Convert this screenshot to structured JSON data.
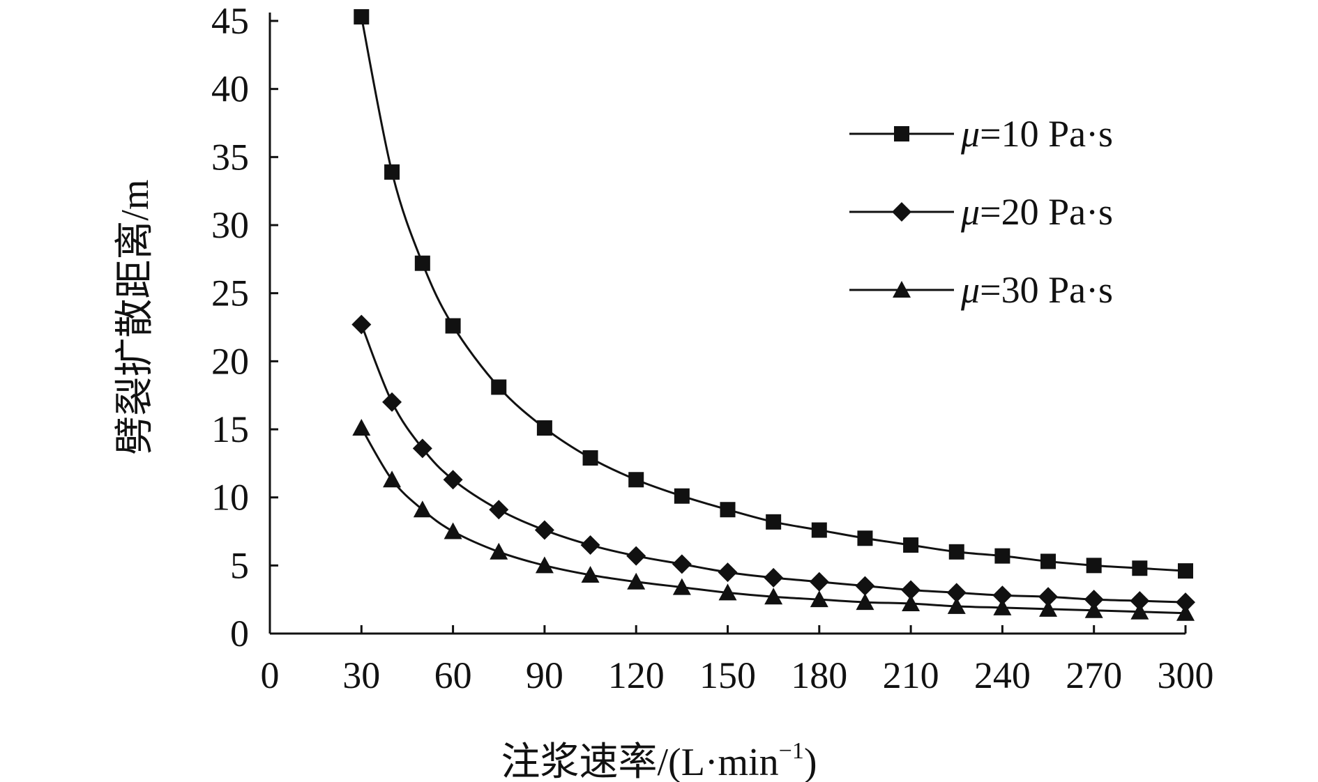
{
  "chart_data": {
    "type": "line",
    "title": "",
    "xlabel": "注浆速率/(L·min",
    "xlabel_sup": "−1",
    "xlabel_end": ")",
    "ylabel": "劈裂扩散距离/m",
    "xlim": [
      0,
      300
    ],
    "ylim": [
      0,
      45
    ],
    "x_ticks": [
      0,
      30,
      60,
      90,
      120,
      150,
      180,
      210,
      240,
      270,
      300
    ],
    "y_ticks": [
      0,
      5,
      10,
      15,
      20,
      25,
      30,
      35,
      40,
      45
    ],
    "grid": false,
    "legend_position": "top-right",
    "x": [
      30,
      40,
      50,
      60,
      75,
      90,
      105,
      120,
      135,
      150,
      165,
      180,
      195,
      210,
      225,
      240,
      255,
      270,
      285,
      300
    ],
    "series": [
      {
        "name_prefix": "μ",
        "name_suffix": "=10 Pa·s",
        "marker": "square",
        "values": [
          45.3,
          33.9,
          27.2,
          22.6,
          18.1,
          15.1,
          12.9,
          11.3,
          10.1,
          9.1,
          8.2,
          7.6,
          7.0,
          6.5,
          6.0,
          5.7,
          5.3,
          5.0,
          4.8,
          4.6
        ]
      },
      {
        "name_prefix": "μ",
        "name_suffix": "=20 Pa·s",
        "marker": "diamond",
        "values": [
          22.7,
          17.0,
          13.6,
          11.3,
          9.1,
          7.6,
          6.5,
          5.7,
          5.1,
          4.5,
          4.1,
          3.8,
          3.5,
          3.2,
          3.0,
          2.8,
          2.7,
          2.5,
          2.4,
          2.3
        ]
      },
      {
        "name_prefix": "μ",
        "name_suffix": "=30 Pa·s",
        "marker": "triangle",
        "values": [
          15.1,
          11.3,
          9.1,
          7.5,
          6.0,
          5.0,
          4.3,
          3.8,
          3.4,
          3.0,
          2.7,
          2.5,
          2.3,
          2.2,
          2.0,
          1.9,
          1.8,
          1.7,
          1.6,
          1.5
        ]
      }
    ]
  }
}
